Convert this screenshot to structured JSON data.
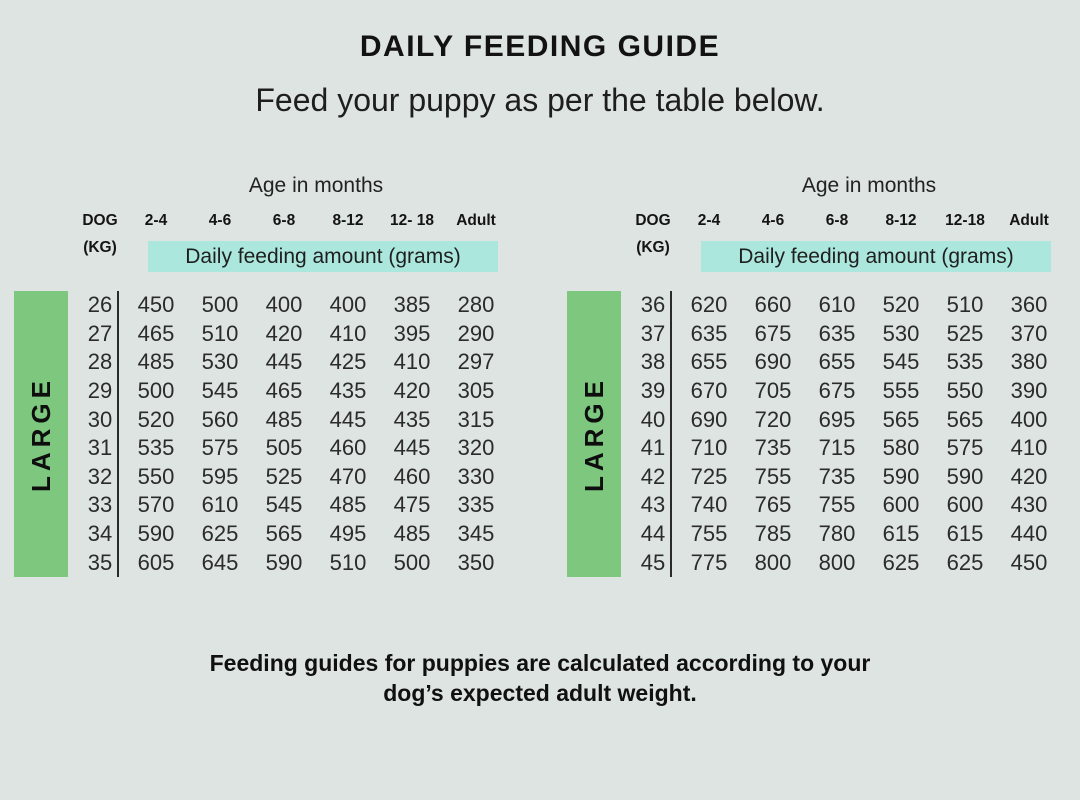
{
  "title": "DAILY FEEDING GUIDE",
  "subtitle": "Feed your puppy as per the table below.",
  "footer": {
    "line1": "Feeding guides for puppies are calculated according to your",
    "line2": "dog’s expected adult weight."
  },
  "colors": {
    "background": "#dde4e2",
    "size_band_green": "#7dc87e",
    "amount_band_teal": "#abe7dd",
    "text": "#1c1c1c"
  },
  "tables": [
    {
      "size_label": "LARGE",
      "age_header": "Age in months",
      "dog_label": "DOG",
      "kg_label": "(KG)",
      "amount_label": "Daily feeding amount (grams)",
      "columns": [
        "2-4",
        "4-6",
        "6-8",
        "8-12",
        "12- 18",
        "Adult"
      ],
      "rows": [
        {
          "kg": "26",
          "values": [
            "450",
            "500",
            "400",
            "400",
            "385",
            "280"
          ]
        },
        {
          "kg": "27",
          "values": [
            "465",
            "510",
            "420",
            "410",
            "395",
            "290"
          ]
        },
        {
          "kg": "28",
          "values": [
            "485",
            "530",
            "445",
            "425",
            "410",
            "297"
          ]
        },
        {
          "kg": "29",
          "values": [
            "500",
            "545",
            "465",
            "435",
            "420",
            "305"
          ]
        },
        {
          "kg": "30",
          "values": [
            "520",
            "560",
            "485",
            "445",
            "435",
            "315"
          ]
        },
        {
          "kg": "31",
          "values": [
            "535",
            "575",
            "505",
            "460",
            "445",
            "320"
          ]
        },
        {
          "kg": "32",
          "values": [
            "550",
            "595",
            "525",
            "470",
            "460",
            "330"
          ]
        },
        {
          "kg": "33",
          "values": [
            "570",
            "610",
            "545",
            "485",
            "475",
            "335"
          ]
        },
        {
          "kg": "34",
          "values": [
            "590",
            "625",
            "565",
            "495",
            "485",
            "345"
          ]
        },
        {
          "kg": "35",
          "values": [
            "605",
            "645",
            "590",
            "510",
            "500",
            "350"
          ]
        }
      ]
    },
    {
      "size_label": "LARGE",
      "age_header": "Age in months",
      "dog_label": "DOG",
      "kg_label": "(KG)",
      "amount_label": "Daily feeding amount (grams)",
      "columns": [
        "2-4",
        "4-6",
        "6-8",
        "8-12",
        "12-18",
        "Adult"
      ],
      "rows": [
        {
          "kg": "36",
          "values": [
            "620",
            "660",
            "610",
            "520",
            "510",
            "360"
          ]
        },
        {
          "kg": "37",
          "values": [
            "635",
            "675",
            "635",
            "530",
            "525",
            "370"
          ]
        },
        {
          "kg": "38",
          "values": [
            "655",
            "690",
            "655",
            "545",
            "535",
            "380"
          ]
        },
        {
          "kg": "39",
          "values": [
            "670",
            "705",
            "675",
            "555",
            "550",
            "390"
          ]
        },
        {
          "kg": "40",
          "values": [
            "690",
            "720",
            "695",
            "565",
            "565",
            "400"
          ]
        },
        {
          "kg": "41",
          "values": [
            "710",
            "735",
            "715",
            "580",
            "575",
            "410"
          ]
        },
        {
          "kg": "42",
          "values": [
            "725",
            "755",
            "735",
            "590",
            "590",
            "420"
          ]
        },
        {
          "kg": "43",
          "values": [
            "740",
            "765",
            "755",
            "600",
            "600",
            "430"
          ]
        },
        {
          "kg": "44",
          "values": [
            "755",
            "785",
            "780",
            "615",
            "615",
            "440"
          ]
        },
        {
          "kg": "45",
          "values": [
            "775",
            "800",
            "800",
            "625",
            "625",
            "450"
          ]
        }
      ]
    }
  ]
}
